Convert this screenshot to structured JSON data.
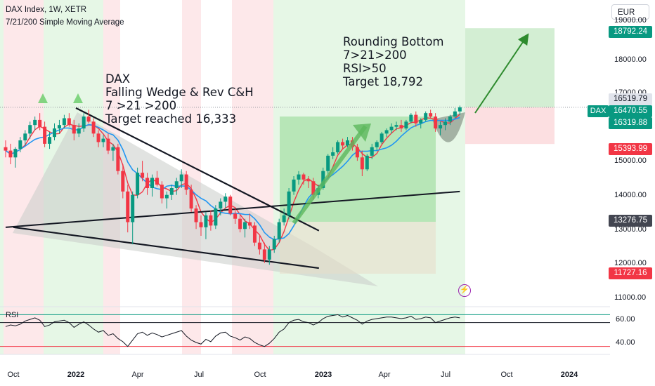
{
  "header": {
    "title": "DAX Index, 1W, XETR",
    "subtitle": "7/21/200 Simple Moving Average"
  },
  "currency_button": "EUR",
  "annotations": {
    "left": [
      "DAX",
      "Falling Wedge & Rev C&H",
      "7 >21 >200",
      "Target reached 16,333"
    ],
    "right": [
      "Rounding Bottom",
      "7>21>200",
      "RSI>50",
      "Target 18,792"
    ]
  },
  "price_axis": {
    "labels": [
      "19000.00",
      "18000.00",
      "17000.00",
      "15000.00",
      "14000.00",
      "13000.00",
      "12000.00",
      "11000.00"
    ],
    "tags": [
      {
        "value": "18792.24",
        "bg": "#089981",
        "fg": "#ffffff"
      },
      {
        "value": "16519.79",
        "bg": "#e0e3eb",
        "fg": "#131722"
      },
      {
        "value": "16470.55",
        "bg": "#089981",
        "fg": "#ffffff"
      },
      {
        "value": "16319.88",
        "bg": "#089981",
        "fg": "#ffffff"
      },
      {
        "value": "15393.99",
        "bg": "#f23645",
        "fg": "#ffffff"
      },
      {
        "value": "13276.75",
        "bg": "#434651",
        "fg": "#ffffff"
      },
      {
        "value": "11727.16",
        "bg": "#f23645",
        "fg": "#ffffff"
      }
    ],
    "symbol_tag": "DAX"
  },
  "time_axis": [
    {
      "label": "Oct",
      "bold": false
    },
    {
      "label": "2022",
      "bold": true
    },
    {
      "label": "Apr",
      "bold": false
    },
    {
      "label": "Jul",
      "bold": false
    },
    {
      "label": "Oct",
      "bold": false
    },
    {
      "label": "2023",
      "bold": true
    },
    {
      "label": "Apr",
      "bold": false
    },
    {
      "label": "Jul",
      "bold": false
    },
    {
      "label": "Oct",
      "bold": false
    },
    {
      "label": "2024",
      "bold": true
    }
  ],
  "rsi": {
    "title": "RSI",
    "levels": [
      "60.00",
      "40.00"
    ]
  },
  "colors": {
    "up": "#089981",
    "down": "#f23645",
    "sma7": "#f23645",
    "sma21": "#2196f3",
    "sma200": "#131722",
    "bull_zone": "#e6f7e6",
    "bear_zone": "#fde8ea",
    "arrow": "#2e8b2e"
  },
  "chart_data": {
    "type": "candlestick",
    "symbol": "DAX",
    "timeframe": "1W",
    "ylim": [
      11000,
      19000
    ],
    "candles": [
      [
        15300,
        15500,
        15000,
        15200
      ],
      [
        15200,
        15400,
        14800,
        15000
      ],
      [
        15000,
        15300,
        14700,
        15250
      ],
      [
        15250,
        15600,
        15150,
        15500
      ],
      [
        15500,
        15800,
        15350,
        15700
      ],
      [
        15700,
        16050,
        15550,
        15950
      ],
      [
        15950,
        16200,
        15800,
        16100
      ],
      [
        16100,
        16300,
        15800,
        15900
      ],
      [
        15900,
        16050,
        15300,
        15400
      ],
      [
        15400,
        15750,
        15250,
        15600
      ],
      [
        15600,
        16000,
        15500,
        15850
      ],
      [
        15850,
        16100,
        15700,
        15950
      ],
      [
        15950,
        16250,
        15850,
        16150
      ],
      [
        16150,
        16300,
        15900,
        15950
      ],
      [
        15950,
        16100,
        15500,
        15700
      ],
      [
        15700,
        16000,
        15600,
        15850
      ],
      [
        15850,
        16300,
        15750,
        16200
      ],
      [
        16200,
        16400,
        16000,
        16050
      ],
      [
        16050,
        16150,
        15600,
        15700
      ],
      [
        15700,
        15800,
        15300,
        15450
      ],
      [
        15450,
        15650,
        15300,
        15550
      ],
      [
        15550,
        15700,
        15100,
        15200
      ],
      [
        15200,
        15400,
        14900,
        15300
      ],
      [
        15300,
        15400,
        14500,
        14600
      ],
      [
        14600,
        14800,
        13800,
        14000
      ],
      [
        14000,
        14200,
        12800,
        13100
      ],
      [
        13100,
        14000,
        12450,
        13900
      ],
      [
        13900,
        14700,
        13800,
        14550
      ],
      [
        14550,
        14900,
        14300,
        14400
      ],
      [
        14400,
        14550,
        13900,
        14100
      ],
      [
        14100,
        14500,
        13850,
        14400
      ],
      [
        14400,
        14600,
        14150,
        14200
      ],
      [
        14200,
        14300,
        13650,
        13800
      ],
      [
        13800,
        14000,
        13500,
        13900
      ],
      [
        13900,
        14200,
        13750,
        14100
      ],
      [
        14100,
        14400,
        13900,
        14300
      ],
      [
        14300,
        14650,
        14100,
        14500
      ],
      [
        14500,
        14600,
        13900,
        14050
      ],
      [
        14050,
        14200,
        13400,
        13500
      ],
      [
        13500,
        13600,
        12900,
        13100
      ],
      [
        13100,
        13300,
        12700,
        12950
      ],
      [
        12950,
        13400,
        12600,
        13300
      ],
      [
        13300,
        13450,
        12850,
        13000
      ],
      [
        13000,
        13600,
        12900,
        13500
      ],
      [
        13500,
        13800,
        13300,
        13700
      ],
      [
        13700,
        13950,
        13500,
        13850
      ],
      [
        13850,
        13900,
        13300,
        13350
      ],
      [
        13350,
        13500,
        13050,
        13200
      ],
      [
        13200,
        13300,
        12800,
        12900
      ],
      [
        12900,
        13200,
        12650,
        13100
      ],
      [
        13100,
        13350,
        12900,
        13000
      ],
      [
        13000,
        13100,
        12400,
        12500
      ],
      [
        12500,
        12700,
        12150,
        12300
      ],
      [
        12300,
        12500,
        11900,
        12000
      ],
      [
        12000,
        12400,
        11850,
        12300
      ],
      [
        12300,
        12700,
        12200,
        12600
      ],
      [
        12600,
        13200,
        12500,
        13100
      ],
      [
        13100,
        13500,
        13000,
        13300
      ],
      [
        13300,
        14100,
        13200,
        14000
      ],
      [
        14000,
        14450,
        13900,
        14350
      ],
      [
        14350,
        14600,
        14200,
        14500
      ],
      [
        14500,
        14550,
        14200,
        14350
      ],
      [
        14350,
        14450,
        14100,
        14300
      ],
      [
        14300,
        14400,
        13750,
        13900
      ],
      [
        13900,
        14200,
        13800,
        14100
      ],
      [
        14100,
        14700,
        14050,
        14600
      ],
      [
        14600,
        15100,
        14500,
        15050
      ],
      [
        15050,
        15300,
        14950,
        15150
      ],
      [
        15150,
        15500,
        15100,
        15450
      ],
      [
        15450,
        15550,
        15250,
        15350
      ],
      [
        15350,
        15600,
        15300,
        15500
      ],
      [
        15500,
        15600,
        15200,
        15300
      ],
      [
        15300,
        15400,
        14900,
        15000
      ],
      [
        15000,
        15200,
        14450,
        14650
      ],
      [
        14650,
        15100,
        14600,
        15050
      ],
      [
        15050,
        15400,
        14950,
        15300
      ],
      [
        15300,
        15500,
        15200,
        15450
      ],
      [
        15450,
        15750,
        15400,
        15700
      ],
      [
        15700,
        15850,
        15600,
        15800
      ],
      [
        15800,
        16000,
        15700,
        15900
      ],
      [
        15900,
        16050,
        15800,
        15950
      ],
      [
        15950,
        16100,
        15750,
        15850
      ],
      [
        15850,
        16100,
        15800,
        16050
      ],
      [
        16050,
        16300,
        16000,
        16250
      ],
      [
        16250,
        16350,
        15900,
        16000
      ],
      [
        16000,
        16150,
        15850,
        16100
      ],
      [
        16100,
        16350,
        16050,
        16300
      ],
      [
        16300,
        16400,
        16150,
        16200
      ],
      [
        16200,
        16300,
        15750,
        15850
      ],
      [
        15850,
        16050,
        15650,
        15950
      ],
      [
        15950,
        16150,
        15800,
        16050
      ],
      [
        16050,
        16250,
        15950,
        16200
      ],
      [
        16200,
        16450,
        16150,
        16350
      ],
      [
        16350,
        16520,
        16250,
        16470
      ]
    ],
    "sma200": [
      [
        0,
        12950
      ],
      [
        93,
        14000
      ]
    ],
    "wedge_upper": [
      [
        0,
        16450
      ],
      [
        44,
        12850
      ]
    ],
    "wedge_lower": [
      [
        -1,
        12950
      ],
      [
        44,
        11750
      ]
    ],
    "target_box": {
      "entry": 16470.55,
      "target": 18792.24,
      "stop": 15393.99
    }
  },
  "rsi_data": {
    "values": [
      55,
      57,
      56,
      58,
      62,
      64,
      66,
      63,
      55,
      57,
      61,
      62,
      63,
      60,
      54,
      58,
      61,
      57,
      52,
      48,
      50,
      44,
      46,
      40,
      36,
      30,
      38,
      46,
      48,
      44,
      47,
      45,
      42,
      44,
      46,
      48,
      50,
      43,
      38,
      35,
      33,
      39,
      36,
      43,
      47,
      48,
      43,
      41,
      38,
      42,
      40,
      35,
      32,
      30,
      34,
      40,
      48,
      52,
      60,
      63,
      64,
      61,
      60,
      57,
      60,
      65,
      68,
      69,
      70,
      67,
      69,
      66,
      63,
      58,
      62,
      64,
      65,
      66,
      67,
      67,
      66,
      65,
      66,
      68,
      64,
      65,
      67,
      66,
      60,
      62,
      64,
      66,
      67,
      66
    ],
    "ylim": [
      20,
      80
    ],
    "levels": [
      70,
      60,
      30
    ]
  }
}
